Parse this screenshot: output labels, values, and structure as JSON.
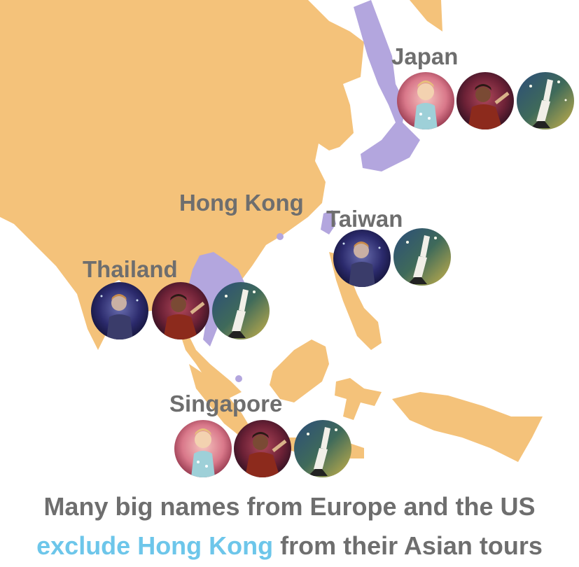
{
  "colors": {
    "land": "#f4c27a",
    "highlight_land": "#b3a6de",
    "label": "#6e6e6e",
    "caption_highlight": "#6dc6ea",
    "background": "#ffffff"
  },
  "locations": {
    "japan": {
      "label": "Japan",
      "artists": [
        "singer-pink-sparkle",
        "singer-red-jacket",
        "singer-white-shirt"
      ]
    },
    "hong_kong": {
      "label": "Hong Kong",
      "artists": []
    },
    "taiwan": {
      "label": "Taiwan",
      "artists": [
        "singer-blue-stage",
        "singer-white-shirt"
      ]
    },
    "thailand": {
      "label": "Thailand",
      "artists": [
        "singer-blue-stage",
        "singer-red-jacket",
        "singer-white-shirt"
      ]
    },
    "singapore": {
      "label": "Singapore",
      "artists": [
        "singer-pink-sparkle",
        "singer-red-jacket",
        "singer-white-shirt"
      ]
    }
  },
  "caption": {
    "line1": "Many big names from Europe and the US",
    "line2_highlight": "exclude Hong Kong",
    "line2_rest": " from their Asian tours"
  }
}
